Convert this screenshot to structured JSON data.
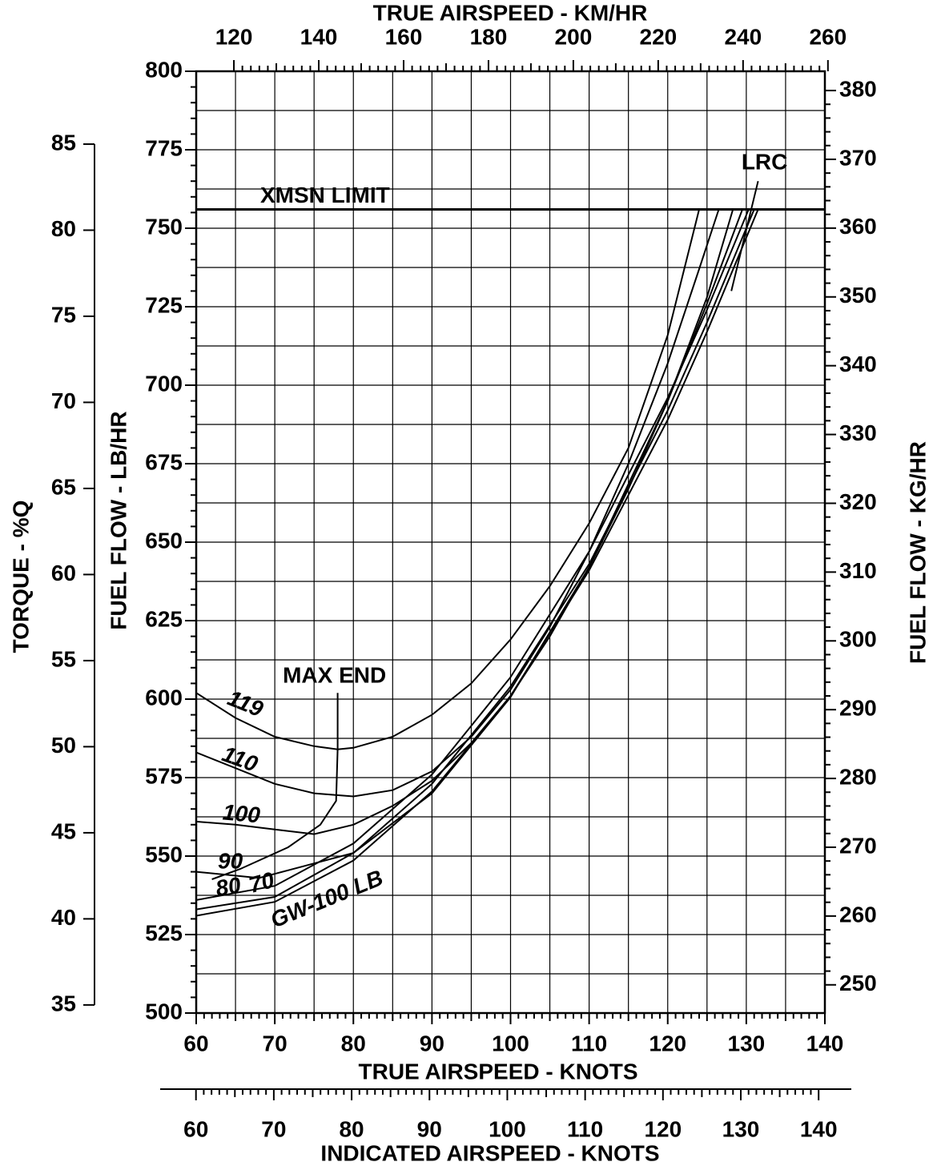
{
  "chart_data": {
    "type": "line",
    "x_label": "TRUE AIRSPEED - KNOTS",
    "y_label": "FUEL FLOW - LB/HR",
    "xlim": [
      60,
      140
    ],
    "xticks": [
      60,
      70,
      80,
      90,
      100,
      110,
      120,
      130,
      140
    ],
    "ylim": [
      500,
      800
    ],
    "yticks": [
      500,
      525,
      550,
      575,
      600,
      625,
      650,
      675,
      700,
      725,
      750,
      775,
      800
    ],
    "grid": true,
    "top_axis": {
      "label": "TRUE AIRSPEED - KM/HR",
      "lim": [
        111.12,
        259.28
      ],
      "ticks": [
        120,
        140,
        160,
        180,
        200,
        220,
        240,
        260
      ]
    },
    "right_axis": {
      "label": "FUEL FLOW - KG/HR",
      "lim": [
        245.9,
        382.8
      ],
      "ticks": [
        250,
        260,
        270,
        280,
        290,
        300,
        310,
        320,
        330,
        340,
        350,
        360,
        370,
        380
      ]
    },
    "torque_axis": {
      "label": "TORQUE - %Q",
      "lim": [
        34.53,
        89.23
      ],
      "ticks": [
        35,
        40,
        45,
        50,
        55,
        60,
        65,
        70,
        75,
        80,
        85
      ]
    },
    "indicated_axis": {
      "label": "INDICATED AIRSPEED - KNOTS",
      "lim": [
        55.4,
        144.2
      ],
      "ticks": [
        60,
        70,
        80,
        90,
        100,
        110,
        120,
        130,
        140
      ]
    },
    "series": [
      {
        "name": "119",
        "color": "#000000",
        "x": [
          60,
          65,
          70,
          75,
          78,
          80,
          85,
          90,
          95,
          100,
          105,
          110,
          115,
          120,
          124
        ],
        "values": [
          602,
          594,
          588,
          585,
          584,
          584.5,
          588,
          595,
          605,
          619,
          636,
          656,
          680,
          716,
          756
        ]
      },
      {
        "name": "110",
        "color": "#000000",
        "x": [
          60,
          65,
          70,
          75,
          80,
          85,
          90,
          95,
          100,
          105,
          110,
          115,
          120,
          124,
          126.5
        ],
        "values": [
          583,
          578,
          573,
          570,
          569,
          571,
          577,
          588,
          603,
          623,
          647,
          675,
          707,
          737,
          756
        ]
      },
      {
        "name": "100",
        "color": "#000000",
        "x": [
          60,
          65,
          70,
          75,
          80,
          85,
          90,
          95,
          100,
          105,
          110,
          115,
          120,
          125,
          128.3
        ],
        "values": [
          561,
          560,
          558.5,
          557,
          560,
          566,
          574,
          586,
          601,
          620,
          642,
          667,
          695,
          728,
          756
        ]
      },
      {
        "name": "90",
        "color": "#000000",
        "x": [
          60,
          68,
          80,
          90,
          100,
          110,
          120,
          125,
          129.5
        ],
        "values": [
          545,
          543,
          551,
          570,
          600.6,
          642,
          695,
          726,
          756
        ]
      },
      {
        "name": "80",
        "color": "#000000",
        "x": [
          60,
          70,
          80,
          90,
          100,
          110,
          120,
          125,
          130.3
        ],
        "values": [
          536,
          540.5,
          554,
          576,
          607,
          647,
          696,
          724,
          756
        ]
      },
      {
        "name": "70",
        "color": "#000000",
        "x": [
          60,
          70,
          80,
          90,
          100,
          110,
          120,
          125,
          131
        ],
        "values": [
          533,
          537,
          551,
          573,
          604,
          643,
          692,
          720,
          756
        ]
      },
      {
        "name": "GW-100 LB",
        "color": "#000000",
        "x": [
          60,
          70,
          80,
          90,
          100,
          110,
          120,
          125,
          131.5
        ],
        "values": [
          531,
          535.4,
          548.6,
          570.6,
          601,
          641,
          689,
          717,
          756
        ]
      }
    ],
    "reference_line": {
      "label": "XMSN LIMIT",
      "value": 756
    },
    "annotations": [
      {
        "label": "MAX END",
        "x": [
          78,
          78,
          77.8,
          75.8,
          71.7,
          65.6,
          62
        ],
        "values": [
          602,
          584,
          567.6,
          560,
          552.8,
          545.9,
          542.6
        ]
      },
      {
        "label": "LRC",
        "x": [
          131.5,
          128.1
        ],
        "values": [
          765,
          730
        ]
      }
    ]
  }
}
